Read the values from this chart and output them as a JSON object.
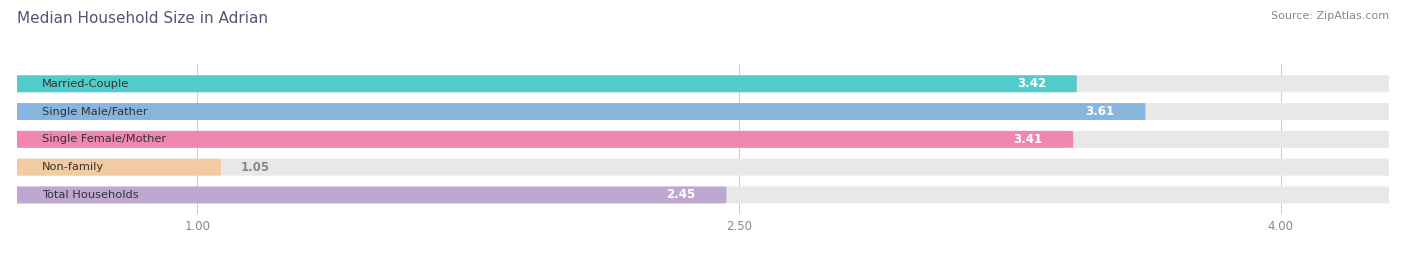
{
  "title": "Median Household Size in Adrian",
  "source": "Source: ZipAtlas.com",
  "categories": [
    "Married-Couple",
    "Single Male/Father",
    "Single Female/Mother",
    "Non-family",
    "Total Households"
  ],
  "values": [
    3.42,
    3.61,
    3.41,
    1.05,
    2.45
  ],
  "bar_colors": [
    "#3dc8c8",
    "#7baedd",
    "#f07aaa",
    "#f5c899",
    "#b8a0cc"
  ],
  "xlim_left": 0.5,
  "xlim_right": 4.3,
  "xticks": [
    1.0,
    2.5,
    4.0
  ],
  "title_color": "#555577",
  "source_color": "#888888",
  "value_threshold": 1.8,
  "bar_height": 0.58,
  "bg_color": "#e8e8e8"
}
